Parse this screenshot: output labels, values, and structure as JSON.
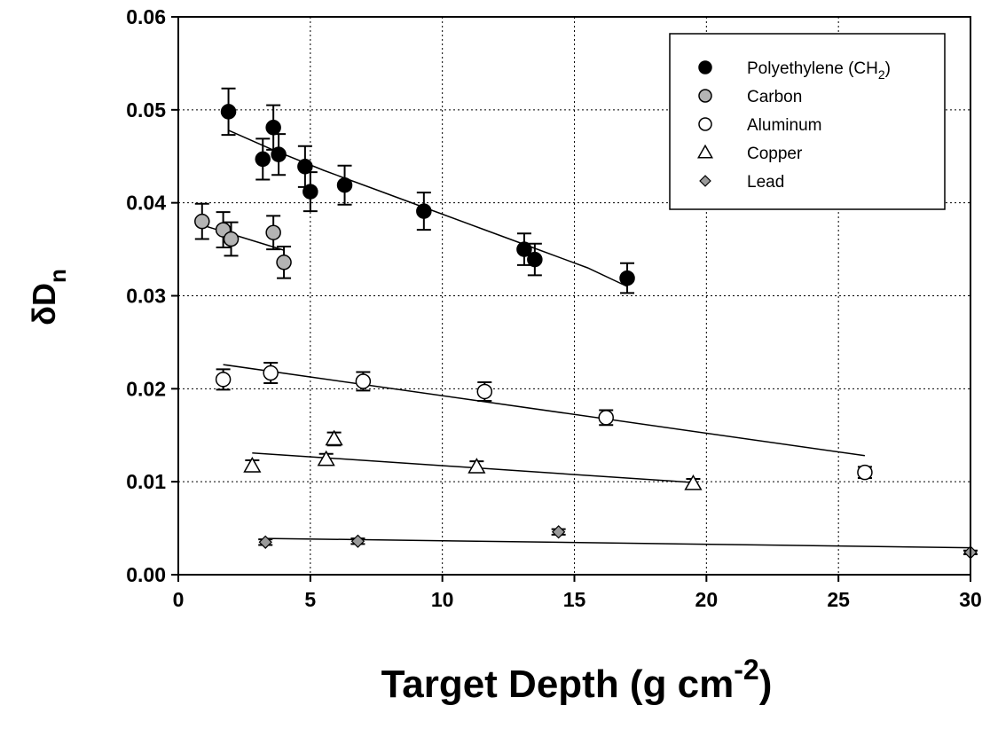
{
  "chart_data": {
    "type": "scatter",
    "xlabel": {
      "main": "Target Depth (g cm",
      "sup": "-2",
      "close": ")"
    },
    "ylabel": {
      "main": "δD",
      "sub": "n"
    },
    "xlim": [
      0,
      30
    ],
    "ylim": [
      0,
      0.06
    ],
    "xticks": [
      0,
      5,
      10,
      15,
      20,
      25,
      30
    ],
    "yticks": [
      0.0,
      0.01,
      0.02,
      0.03,
      0.04,
      0.05,
      0.06
    ],
    "xtick_labels": [
      "0",
      "5",
      "10",
      "15",
      "20",
      "25",
      "30"
    ],
    "ytick_labels": [
      "0.00",
      "0.01",
      "0.02",
      "0.03",
      "0.04",
      "0.05",
      "0.06"
    ],
    "grid": true,
    "legend_position": "top-right",
    "series": [
      {
        "name": "Polyethylene (CH2)",
        "legend_main": "Polyethylene (CH",
        "legend_sub": "2",
        "legend_close": ")",
        "marker": "circle",
        "fill": "#000000",
        "points": [
          {
            "x": 1.9,
            "y": 0.0498,
            "err": 0.0025
          },
          {
            "x": 3.2,
            "y": 0.0447,
            "err": 0.0022
          },
          {
            "x": 3.6,
            "y": 0.0481,
            "err": 0.0024
          },
          {
            "x": 3.8,
            "y": 0.0452,
            "err": 0.0022
          },
          {
            "x": 4.8,
            "y": 0.0439,
            "err": 0.0022
          },
          {
            "x": 5.0,
            "y": 0.0412,
            "err": 0.0021
          },
          {
            "x": 6.3,
            "y": 0.0419,
            "err": 0.0021
          },
          {
            "x": 9.3,
            "y": 0.0391,
            "err": 0.002
          },
          {
            "x": 13.1,
            "y": 0.035,
            "err": 0.0017
          },
          {
            "x": 13.5,
            "y": 0.0339,
            "err": 0.0017
          },
          {
            "x": 17.0,
            "y": 0.0319,
            "err": 0.0016
          }
        ],
        "fit": [
          [
            1.9,
            0.0478
          ],
          [
            3.5,
            0.0458
          ],
          [
            5.5,
            0.0435
          ],
          [
            7.5,
            0.0414
          ],
          [
            9.5,
            0.0393
          ],
          [
            11.5,
            0.0372
          ],
          [
            13.5,
            0.0351
          ],
          [
            15.5,
            0.033
          ],
          [
            17.0,
            0.031
          ]
        ]
      },
      {
        "name": "Carbon",
        "marker": "circle",
        "fill": "#b4b4b4",
        "points": [
          {
            "x": 0.9,
            "y": 0.038,
            "err": 0.0019
          },
          {
            "x": 1.7,
            "y": 0.0371,
            "err": 0.0019
          },
          {
            "x": 2.0,
            "y": 0.0361,
            "err": 0.0018
          },
          {
            "x": 3.6,
            "y": 0.0368,
            "err": 0.0018
          },
          {
            "x": 4.0,
            "y": 0.0336,
            "err": 0.0017
          }
        ],
        "fit": [
          [
            0.9,
            0.0376
          ],
          [
            4.0,
            0.0349
          ]
        ]
      },
      {
        "name": "Aluminum",
        "marker": "circle",
        "fill": "#ffffff",
        "points": [
          {
            "x": 1.7,
            "y": 0.021,
            "err": 0.0011
          },
          {
            "x": 3.5,
            "y": 0.0217,
            "err": 0.0011
          },
          {
            "x": 7.0,
            "y": 0.0208,
            "err": 0.001
          },
          {
            "x": 11.6,
            "y": 0.0197,
            "err": 0.001
          },
          {
            "x": 16.2,
            "y": 0.0169,
            "err": 0.0008
          },
          {
            "x": 26.0,
            "y": 0.011,
            "err": 0.0006
          }
        ],
        "fit": [
          [
            1.7,
            0.0226
          ],
          [
            26.0,
            0.0128
          ]
        ]
      },
      {
        "name": "Copper",
        "marker": "triangle",
        "fill": "#ffffff",
        "points": [
          {
            "x": 2.8,
            "y": 0.0117,
            "err": 0.0006
          },
          {
            "x": 5.6,
            "y": 0.0124,
            "err": 0.0006
          },
          {
            "x": 5.9,
            "y": 0.0146,
            "err": 0.0007
          },
          {
            "x": 11.3,
            "y": 0.0116,
            "err": 0.0006
          },
          {
            "x": 19.5,
            "y": 0.0098,
            "err": 0.0005
          }
        ],
        "fit": [
          [
            2.8,
            0.0131
          ],
          [
            19.6,
            0.0099
          ]
        ]
      },
      {
        "name": "Lead",
        "marker": "diamond",
        "fill": "#9a9a9a",
        "points": [
          {
            "x": 3.3,
            "y": 0.0035,
            "err": 0.0003
          },
          {
            "x": 6.8,
            "y": 0.0036,
            "err": 0.0003
          },
          {
            "x": 14.4,
            "y": 0.0046,
            "err": 0.0003
          },
          {
            "x": 30.0,
            "y": 0.0024,
            "err": 0.0002
          }
        ],
        "fit": [
          [
            3.3,
            0.0039
          ],
          [
            30.0,
            0.0029
          ]
        ]
      }
    ]
  }
}
